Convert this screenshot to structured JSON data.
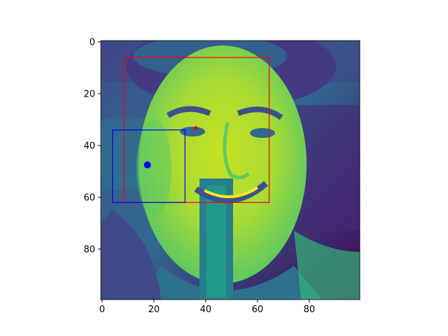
{
  "figure": {
    "image_description": "viridis-colormapped grayscale photo of a smiling young man's face",
    "colormap": "viridis",
    "axes": {
      "x_ticks": [
        "0",
        "20",
        "40",
        "60",
        "80"
      ],
      "y_ticks": [
        "0",
        "20",
        "40",
        "60",
        "80"
      ],
      "xlim": [
        -0.5,
        99.5
      ],
      "ylim": [
        99.5,
        -0.5
      ]
    },
    "annotations": {
      "red_box": {
        "x0": 8.5,
        "y0": 6.5,
        "x1": 64.5,
        "y1": 62.5,
        "color": "#ff0000"
      },
      "blue_box": {
        "x0": 4.0,
        "y0": 34.0,
        "x1": 32.0,
        "y1": 62.0,
        "color": "#0000ff"
      },
      "blue_dot": {
        "x": 17.5,
        "y": 47.5,
        "color": "#0000ff"
      },
      "red_marker": {
        "x": 37,
        "y": 34,
        "color": "#ff0000"
      }
    }
  }
}
